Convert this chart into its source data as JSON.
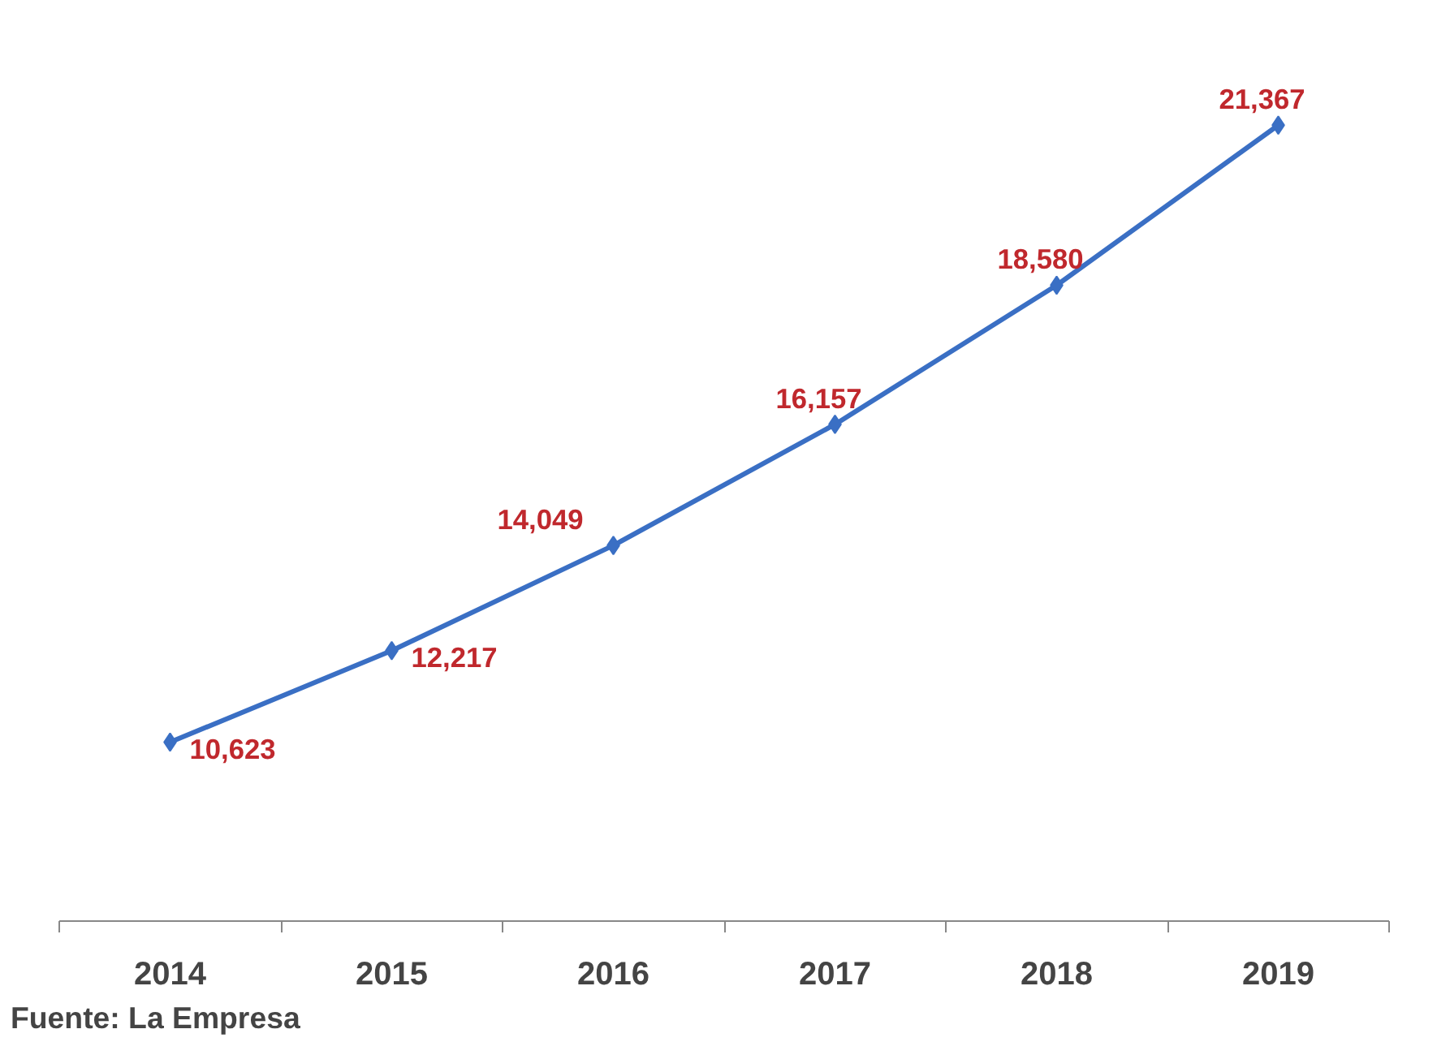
{
  "chart_data": {
    "type": "line",
    "categories": [
      "2014",
      "2015",
      "2016",
      "2017",
      "2018",
      "2019"
    ],
    "series": [
      {
        "color": "#3a6fc4",
        "values": [
          10623,
          12217,
          14049,
          16157,
          18580,
          21367
        ],
        "value_labels": [
          "10,623",
          "12,217",
          "14,049",
          "16,157",
          "18,580",
          "21,367"
        ]
      }
    ],
    "marker": "diamond",
    "line_style": "solid",
    "annotations": [
      "Fuente: La Empresa"
    ]
  }
}
